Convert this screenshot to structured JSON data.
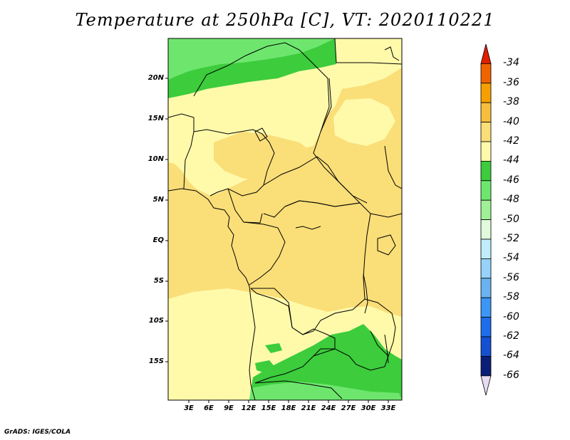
{
  "title": "Temperature at 250hPa [C], VT: 2020110221",
  "credit": "GrADS: IGES/COLA",
  "lat_labels": [
    "20N",
    "15N",
    "10N",
    "5N",
    "EQ",
    "5S",
    "10S",
    "15S"
  ],
  "lon_labels": [
    "3E",
    "6E",
    "9E",
    "12E",
    "15E",
    "18E",
    "21E",
    "24E",
    "27E",
    "30E",
    "33E"
  ],
  "colorbar": {
    "labels": [
      "-34",
      "-36",
      "-38",
      "-40",
      "-42",
      "-44",
      "-46",
      "-48",
      "-50",
      "-52",
      "-54",
      "-56",
      "-58",
      "-60",
      "-62",
      "-64",
      "-66"
    ],
    "colors": [
      "#e01e00",
      "#f06400",
      "#f5a000",
      "#f5be3c",
      "#fade78",
      "#fffaaa",
      "#3ccc3c",
      "#6ee66e",
      "#a0f096",
      "#e0fcdc",
      "#c0ecfc",
      "#96d2fa",
      "#6ab2f0",
      "#3c96f5",
      "#1e6eeb",
      "#1450d2",
      "#0a1e78",
      "#e6dcf0"
    ]
  },
  "palette": {
    "c40": "#fade78",
    "c42": "#fffaaa",
    "c44": "#3ccc3c",
    "c46": "#6ee66e"
  }
}
